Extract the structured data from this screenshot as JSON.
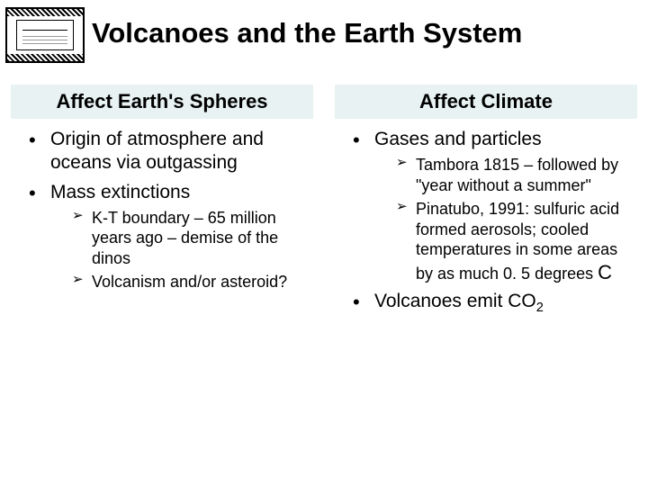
{
  "title": "Volcanoes and the Earth System",
  "columns": {
    "left": {
      "header": "Affect Earth's Spheres",
      "bullets": [
        "Origin of atmosphere and oceans via outgassing",
        "Mass extinctions"
      ],
      "subbullets": [
        "K-T boundary – 65 million years ago – demise of the dinos",
        "Volcanism and/or asteroid?"
      ]
    },
    "right": {
      "header": "Affect Climate",
      "bullet1": "Gases and particles",
      "subbullets": [
        "Tambora 1815 – followed by \"year without a summer\"",
        "Pinatubo, 1991: sulfuric acid formed aerosols; cooled temperatures in some areas by as much 0. 5 degrees"
      ],
      "sub_trail": "C",
      "bullet2_prefix": "Volcanoes emit CO",
      "bullet2_sub": "2"
    }
  },
  "colors": {
    "header_bg": "#e8f2f2",
    "text": "#000000",
    "page_bg": "#ffffff"
  }
}
